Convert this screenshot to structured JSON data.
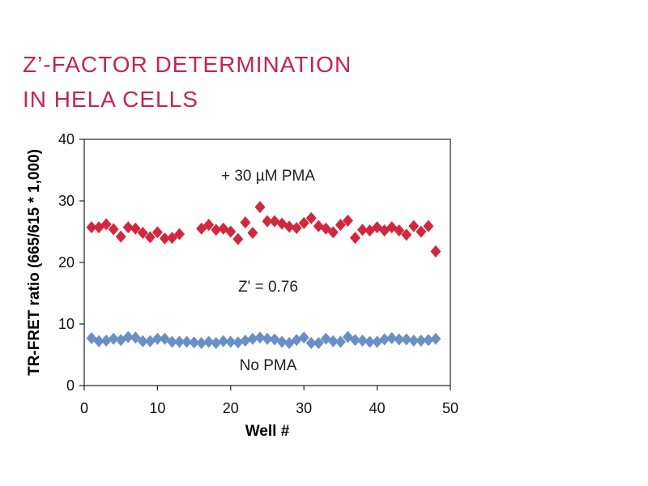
{
  "header": {
    "title_line_1": "Z’-FACTOR DETERMINATION",
    "title_line_2": "IN HELA CELLS"
  },
  "chart_data": {
    "type": "scatter",
    "title": "Z’-FACTOR DETERMINATION IN HELA CELLS",
    "xlabel": "Well #",
    "ylabel": "TR-FRET ratio (665/615 * 1,000)",
    "xlim": [
      0,
      50
    ],
    "ylim": [
      0,
      40
    ],
    "xticks": [
      0,
      10,
      20,
      30,
      40,
      50
    ],
    "yticks": [
      0,
      10,
      20,
      30,
      40
    ],
    "grid": false,
    "annotations": {
      "pma": "+ 30 µM PMA",
      "zprime": "Z' = 0.76",
      "no_pma": "No PMA"
    },
    "series": [
      {
        "name": "+ 30 µM PMA",
        "color": "#d1283f",
        "marker": "diamond",
        "x": [
          1,
          2,
          3,
          4,
          5,
          6,
          7,
          8,
          9,
          10,
          11,
          12,
          13,
          16,
          17,
          18,
          19,
          20,
          21,
          22,
          23,
          24,
          25,
          26,
          27,
          28,
          29,
          30,
          31,
          32,
          33,
          34,
          35,
          36,
          37,
          38,
          39,
          40,
          41,
          42,
          43,
          44,
          45,
          46,
          47,
          48
        ],
        "y": [
          25.7,
          25.7,
          26.2,
          25.4,
          24.2,
          25.7,
          25.5,
          24.8,
          24.1,
          24.9,
          23.9,
          24.0,
          24.6,
          25.5,
          26.1,
          25.3,
          25.5,
          25.0,
          23.8,
          26.5,
          24.8,
          29.0,
          26.7,
          26.7,
          26.3,
          25.8,
          25.6,
          26.4,
          27.2,
          25.9,
          25.5,
          24.9,
          26.1,
          26.8,
          24.0,
          25.3,
          25.2,
          25.7,
          25.2,
          25.7,
          25.2,
          24.5,
          25.9,
          25.0,
          25.9,
          21.8
        ]
      },
      {
        "name": "No PMA",
        "color": "#6a8fc7",
        "marker": "diamond",
        "x": [
          1,
          2,
          3,
          4,
          5,
          6,
          7,
          8,
          9,
          10,
          11,
          12,
          13,
          14,
          15,
          16,
          17,
          18,
          19,
          20,
          21,
          22,
          23,
          24,
          25,
          26,
          27,
          28,
          29,
          30,
          31,
          32,
          33,
          34,
          35,
          36,
          37,
          38,
          39,
          40,
          41,
          42,
          43,
          44,
          45,
          46,
          47,
          48
        ],
        "y": [
          7.7,
          7.2,
          7.3,
          7.6,
          7.4,
          7.9,
          7.8,
          7.2,
          7.2,
          7.6,
          7.6,
          7.1,
          7.1,
          7.1,
          7.0,
          6.9,
          7.1,
          6.9,
          7.2,
          7.1,
          7.0,
          7.3,
          7.6,
          7.8,
          7.6,
          7.5,
          7.1,
          6.9,
          7.4,
          7.8,
          6.9,
          6.9,
          7.6,
          7.2,
          7.1,
          7.9,
          7.4,
          7.3,
          7.1,
          7.1,
          7.5,
          7.7,
          7.5,
          7.5,
          7.3,
          7.3,
          7.4,
          7.6
        ]
      }
    ]
  }
}
